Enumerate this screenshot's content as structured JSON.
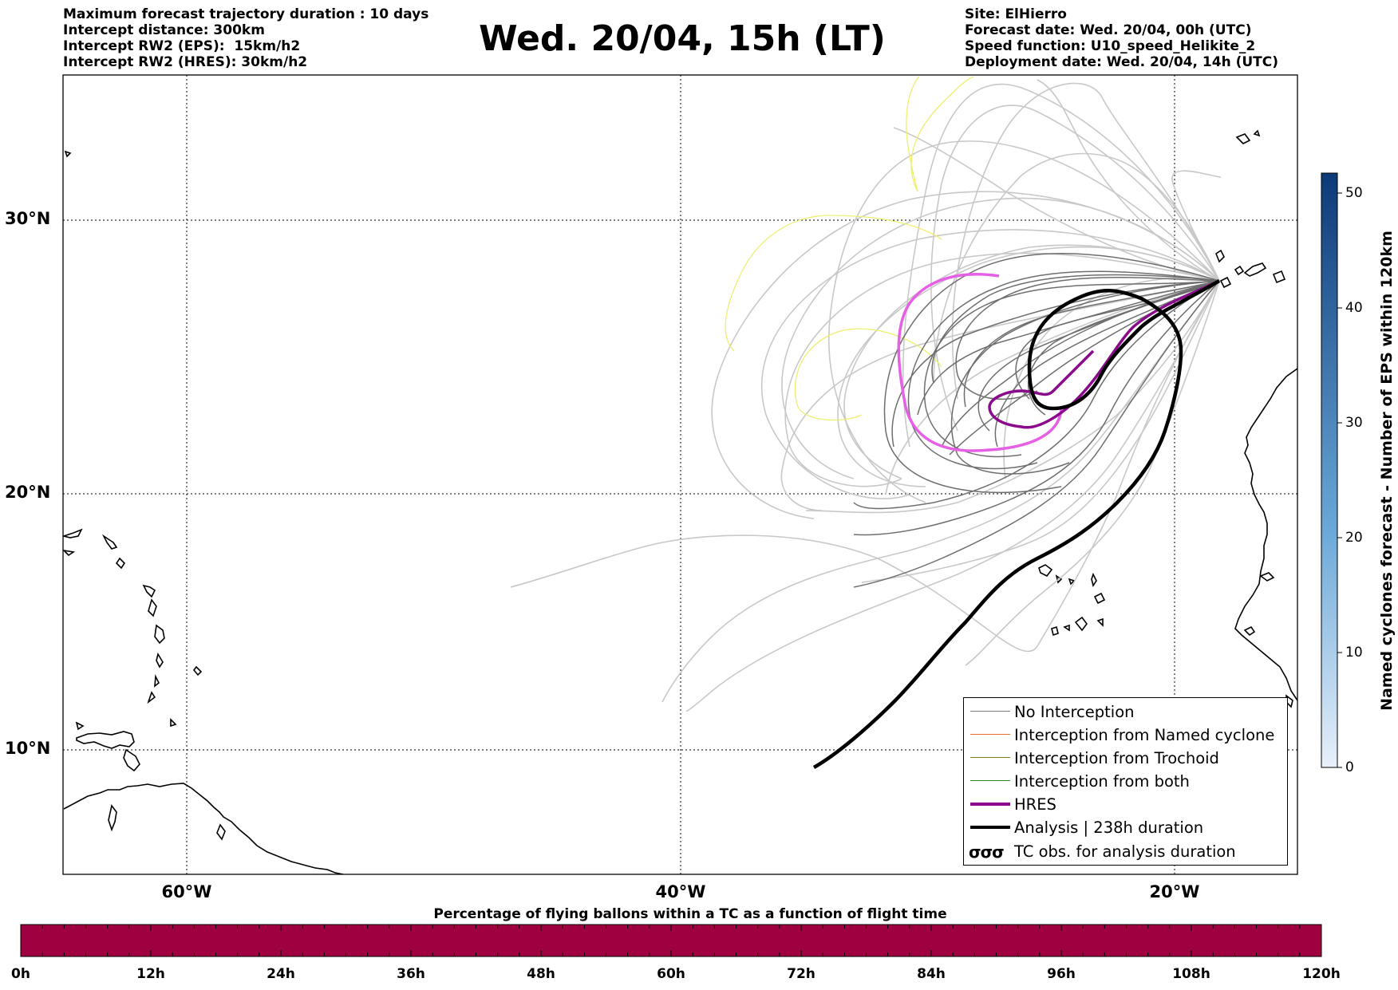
{
  "header_left": [
    "Maximum forecast trajectory duration : 10 days",
    "Intercept distance: 300km",
    "Intercept RW2 (EPS):  15km/h2",
    "Intercept RW2 (HRES): 30km/h2"
  ],
  "title": "Wed. 20/04, 15h (LT)",
  "header_right": [
    "Site: ElHierro",
    "Forecast date: Wed. 20/04, 00h (UTC)",
    "Speed function: U10_speed_Helikite_2",
    "Deployment date: Wed. 20/04, 14h (UTC)"
  ],
  "map": {
    "lat_labels": [
      "30°N",
      "20°N",
      "10°N"
    ],
    "lon_labels": [
      "60°W",
      "40°W",
      "20°W"
    ],
    "gridlines": "dotted"
  },
  "legend": [
    {
      "label": "No Interception",
      "color": "#777777",
      "style": "thin"
    },
    {
      "label": "Interception from Named cyclone",
      "color": "#e8692d",
      "style": "thin"
    },
    {
      "label": "Interception from Trochoid",
      "color": "#7a7a10",
      "style": "thin"
    },
    {
      "label": "Interception from both",
      "color": "#2a8a2a",
      "style": "thin"
    },
    {
      "label": "HRES",
      "color": "#8b0a8b",
      "style": "thick"
    },
    {
      "label": "Analysis | 238h duration",
      "color": "#000000",
      "style": "thick"
    },
    {
      "label": "TC obs. for analysis duration",
      "color": "#000000",
      "style": "symbol",
      "symbol": "σσσ"
    }
  ],
  "colorbar": {
    "label": "Named cyclones forecast - Number of EPS within 120km",
    "ticks": [
      "0",
      "10",
      "20",
      "30",
      "40",
      "50"
    ],
    "color_low": "#e6eef9",
    "color_high": "#0c3a78"
  },
  "time_bar": {
    "title": "Percentage of flying ballons within a TC as a function of flight time",
    "ticks": [
      "0h",
      "12h",
      "24h",
      "36h",
      "48h",
      "60h",
      "72h",
      "84h",
      "96h",
      "108h",
      "120h"
    ],
    "fill_color": "#9e0040"
  },
  "colors": {
    "eps_light": "#c8c8c8",
    "eps_dark": "#6e6e6e",
    "eps_yellow": "#eeee70",
    "hres": "#8b0a8b",
    "hres_pink": "#e660e6",
    "analysis": "#000000"
  }
}
